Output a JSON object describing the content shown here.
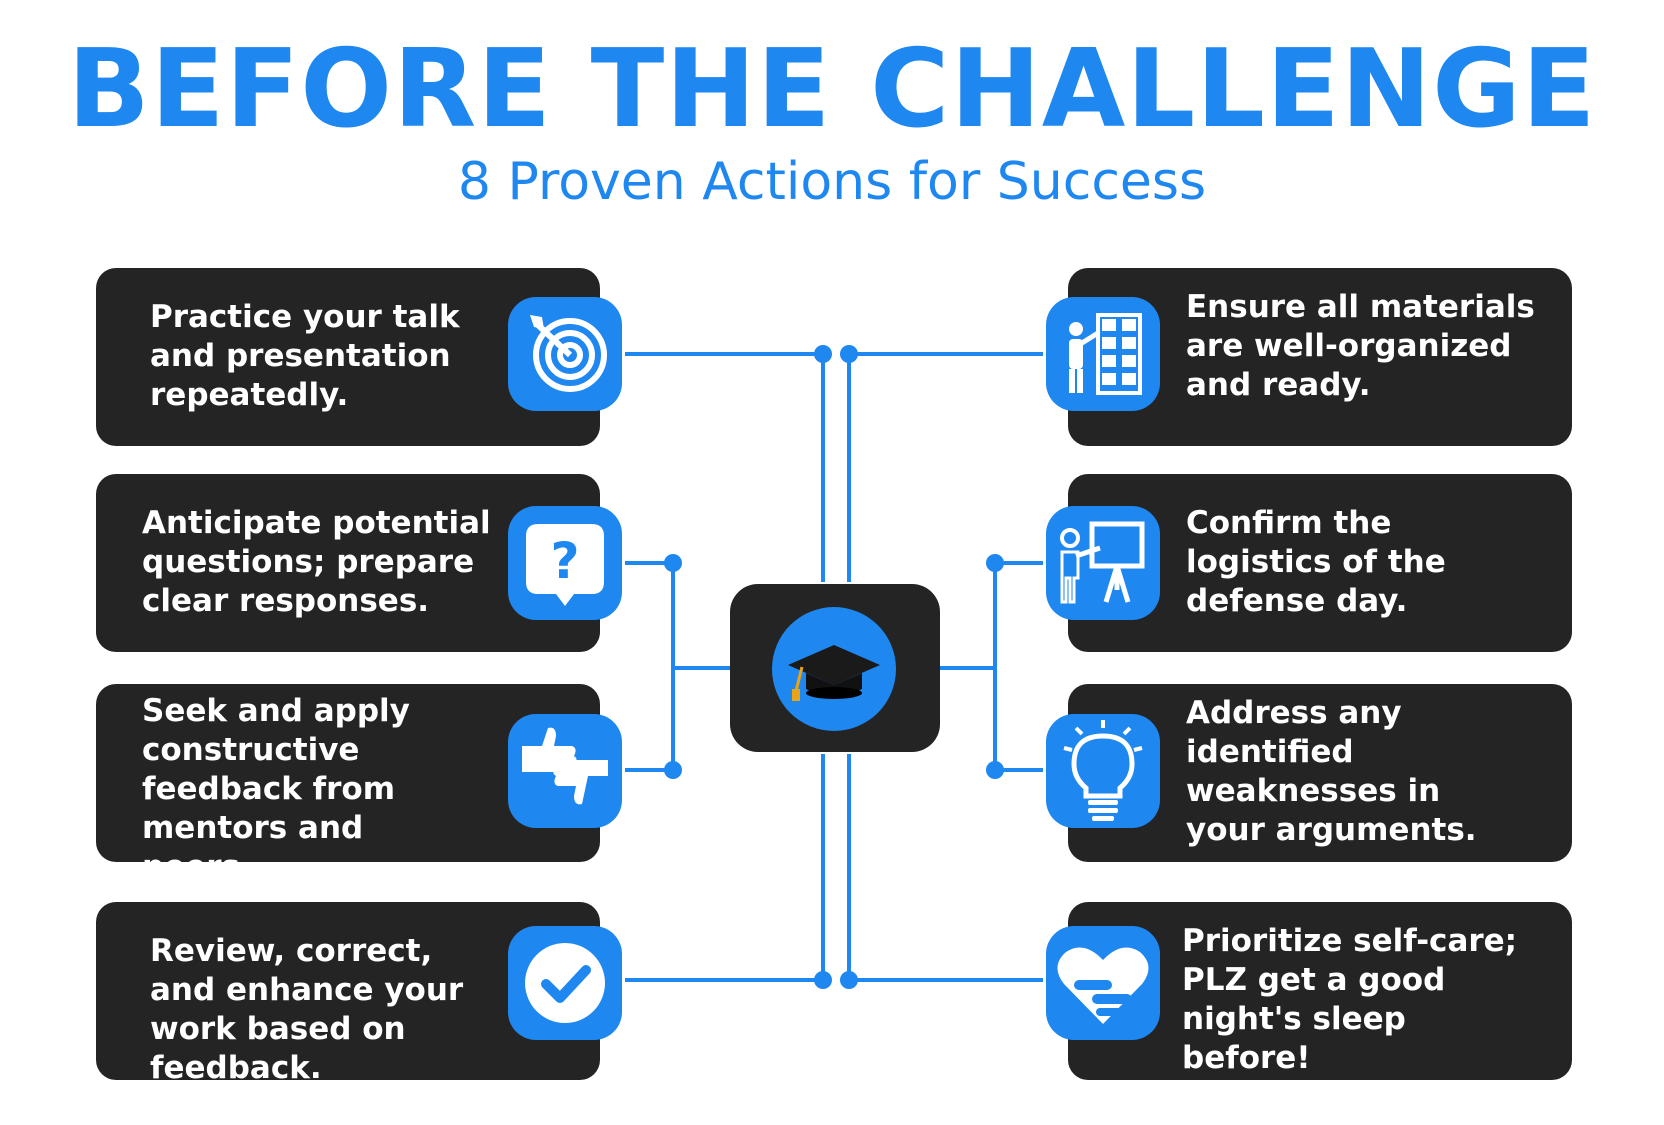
{
  "header": {
    "title": "BEFORE THE CHALLENGE",
    "subtitle": "8 Proven Actions for Success"
  },
  "colors": {
    "accent": "#1e87f0",
    "card": "#242424",
    "text": "#ffffff"
  },
  "actions": [
    {
      "text": "Practice your talk and presentation repeatedly.",
      "icon": "target-icon"
    },
    {
      "text": "Anticipate potential questions; prepare clear responses.",
      "icon": "question-bubble-icon"
    },
    {
      "text": "Seek and apply constructive feedback from mentors and peers.",
      "icon": "thumbs-up-down-icon"
    },
    {
      "text": "Review, correct, and enhance your work based on feedback.",
      "icon": "check-badge-icon"
    },
    {
      "text": "Ensure all materials are well-organized and ready.",
      "icon": "shelf-organizer-icon"
    },
    {
      "text": "Confirm the logistics of the defense day.",
      "icon": "presentation-board-icon"
    },
    {
      "text": "Address any identified weaknesses in your arguments.",
      "icon": "lightbulb-icon"
    },
    {
      "text": "Prioritize self-care; PLZ get a good night's sleep before!",
      "icon": "heart-hug-icon"
    }
  ],
  "center_icon": "graduation-cap-icon"
}
